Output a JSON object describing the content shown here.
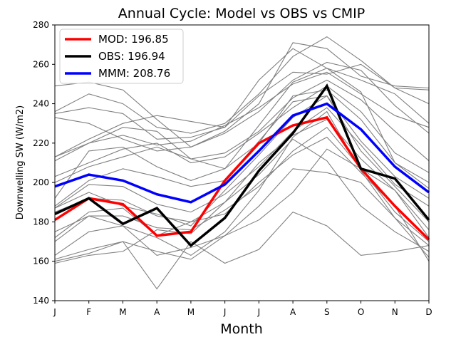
{
  "chart_data": {
    "type": "line",
    "title": "Annual Cycle: Model vs OBS vs CMIP",
    "xlabel": "Month",
    "ylabel": "Downwelling SW (W/m2)",
    "categories": [
      "J",
      "F",
      "M",
      "A",
      "M",
      "J",
      "J",
      "A",
      "S",
      "O",
      "N",
      "D"
    ],
    "ylim": [
      140,
      280
    ],
    "yticks": [
      140,
      160,
      180,
      200,
      220,
      240,
      260,
      280
    ],
    "legend_position": "top-left",
    "series": [
      {
        "name": "MOD: 196.85",
        "color": "#ff0000",
        "values": [
          181,
          192,
          189,
          173,
          175,
          201,
          220,
          229,
          233,
          207,
          188,
          171
        ]
      },
      {
        "name": "OBS: 196.94",
        "color": "#000000",
        "values": [
          184,
          192,
          179,
          187,
          168,
          182,
          206,
          225,
          249,
          207,
          202,
          181
        ]
      },
      {
        "name": "MMM: 208.76",
        "color": "#0000ff",
        "values": [
          198,
          204,
          201,
          194,
          190,
          199,
          216,
          234,
          240,
          227,
          208,
          195
        ]
      }
    ],
    "ensemble": {
      "color": "#808080",
      "members": [
        [
          249,
          251,
          247,
          232,
          218,
          226,
          240,
          271,
          268,
          254,
          249,
          248
        ],
        [
          236,
          245,
          240,
          228,
          225,
          230,
          245,
          264,
          274,
          262,
          248,
          240
        ],
        [
          235,
          238,
          235,
          222,
          223,
          228,
          252,
          268,
          258,
          252,
          245,
          230
        ],
        [
          233,
          230,
          222,
          216,
          218,
          225,
          236,
          252,
          261,
          257,
          239,
          225
        ],
        [
          213,
          222,
          230,
          234,
          231,
          228,
          244,
          256,
          255,
          260,
          248,
          247
        ],
        [
          213,
          220,
          224,
          219,
          221,
          229,
          238,
          250,
          256,
          245,
          234,
          228
        ],
        [
          211,
          220,
          228,
          226,
          212,
          215,
          226,
          243,
          252,
          242,
          226,
          211
        ],
        [
          203,
          210,
          217,
          220,
          210,
          213,
          225,
          238,
          249,
          236,
          215,
          205
        ],
        [
          200,
          208,
          213,
          218,
          212,
          207,
          229,
          251,
          258,
          246,
          210,
          200
        ],
        [
          192,
          216,
          218,
          208,
          201,
          207,
          220,
          244,
          247,
          232,
          210,
          197
        ],
        [
          188,
          201,
          207,
          203,
          198,
          201,
          221,
          241,
          244,
          221,
          203,
          192
        ],
        [
          187,
          199,
          198,
          189,
          185,
          194,
          208,
          226,
          238,
          219,
          199,
          188
        ],
        [
          187,
          195,
          188,
          184,
          178,
          196,
          214,
          233,
          244,
          216,
          198,
          180
        ],
        [
          185,
          192,
          191,
          183,
          180,
          190,
          210,
          224,
          232,
          212,
          196,
          172
        ],
        [
          175,
          183,
          183,
          177,
          176,
          186,
          198,
          216,
          228,
          207,
          185,
          170
        ],
        [
          172,
          185,
          187,
          173,
          180,
          184,
          200,
          214,
          223,
          205,
          188,
          160
        ],
        [
          163,
          175,
          178,
          172,
          163,
          175,
          196,
          223,
          236,
          206,
          182,
          168
        ],
        [
          170,
          183,
          178,
          163,
          167,
          173,
          188,
          207,
          205,
          200,
          182,
          162
        ],
        [
          161,
          166,
          170,
          165,
          161,
          173,
          181,
          195,
          217,
          207,
          196,
          176
        ],
        [
          160,
          164,
          170,
          146,
          170,
          159,
          166,
          185,
          178,
          163,
          165,
          168
        ],
        [
          159,
          163,
          165,
          176,
          174,
          190,
          204,
          222,
          211,
          188,
          175,
          165
        ]
      ]
    }
  }
}
